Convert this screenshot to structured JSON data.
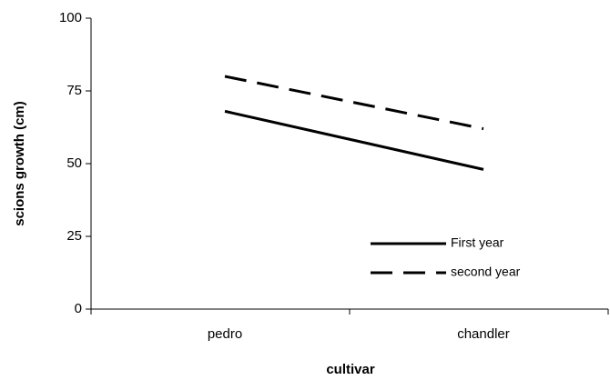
{
  "chart_data": {
    "type": "line",
    "x_label": "cultivar",
    "y_label": "scions growth (cm)",
    "categories": [
      "pedro",
      "chandler"
    ],
    "series": [
      {
        "name": "First year",
        "color": "#000000",
        "dash": "solid",
        "values": [
          68,
          48
        ]
      },
      {
        "name": "second year",
        "color": "#000000",
        "dash": "dashed",
        "values": [
          80,
          62
        ]
      }
    ],
    "ylim": [
      0,
      100
    ],
    "yticks": [
      0,
      25,
      50,
      75,
      100
    ],
    "grid": false,
    "legend": "lower right"
  }
}
